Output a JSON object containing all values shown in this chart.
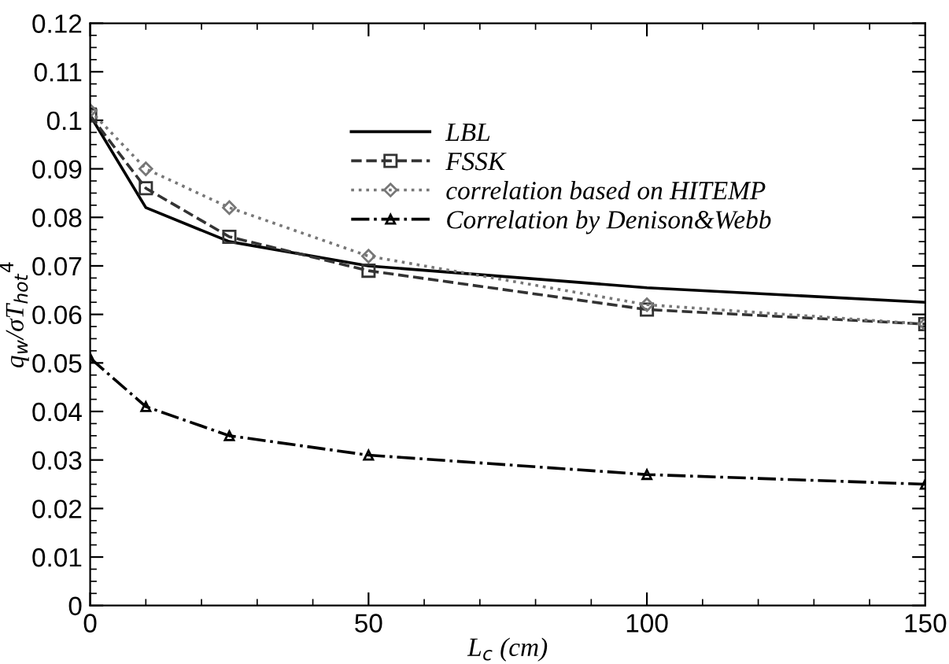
{
  "chart_data": {
    "type": "line",
    "xlabel": "L$_{c}$ (cm)",
    "ylabel": "q$_{w}$/σT$_{hot}$$^{4}$",
    "x": [
      0,
      10,
      25,
      50,
      100,
      150
    ],
    "series": [
      {
        "name": "LBL",
        "color": "#000000",
        "values": [
          0.101,
          0.082,
          0.075,
          0.07,
          0.0655,
          0.0625
        ],
        "marker": "none",
        "line_style": "solid"
      },
      {
        "name": "FSSK",
        "color": "#333333",
        "values": [
          0.101,
          0.086,
          0.076,
          0.069,
          0.061,
          0.058
        ],
        "marker": "square",
        "line_style": "dashed"
      },
      {
        "name": "correlation based on HITEMP",
        "color": "#777777",
        "values": [
          0.102,
          0.09,
          0.082,
          0.072,
          0.062,
          0.058
        ],
        "marker": "diamond",
        "line_style": "dotted"
      },
      {
        "name": "Correlation by Denison&Webb",
        "color": "#000000",
        "values": [
          0.051,
          0.041,
          0.035,
          0.031,
          0.027,
          0.025
        ],
        "marker": "triangle",
        "line_style": "dashdot"
      }
    ],
    "xlim": [
      0,
      150
    ],
    "xticks": [
      0,
      50,
      100,
      150
    ],
    "ylim": [
      0,
      0.12
    ],
    "yticks": [
      0,
      0.01,
      0.02,
      0.03,
      0.04,
      0.05,
      0.06,
      0.07,
      0.08,
      0.09,
      0.1,
      0.11,
      0.12
    ],
    "grid": false,
    "legend": "top right"
  }
}
